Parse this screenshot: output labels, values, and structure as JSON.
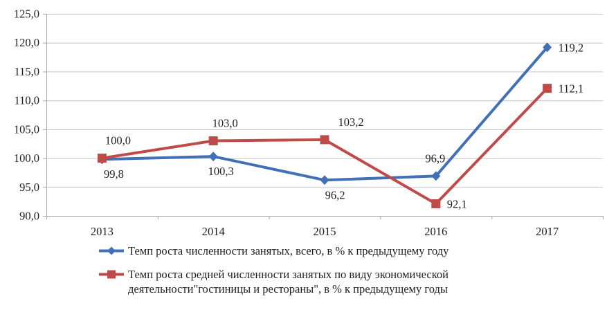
{
  "chart_data": {
    "type": "line",
    "x_categories": [
      "2013",
      "2014",
      "2015",
      "2016",
      "2017"
    ],
    "series": [
      {
        "name": "Темп роста численности занятых, всего, в % к предыдущему году",
        "color": "#4170B8",
        "marker": "diamond",
        "values": [
          99.8,
          100.3,
          96.2,
          96.9,
          119.2
        ],
        "point_labels": [
          "99,8",
          "100,3",
          "96,2",
          "96,9",
          "119,2"
        ],
        "label_placements": [
          {
            "pos": "below",
            "dx": 17
          },
          {
            "pos": "below",
            "dx": 11
          },
          {
            "pos": "below",
            "dx": 15
          },
          {
            "pos": "above",
            "dx": -1
          },
          {
            "pos": "right"
          }
        ]
      },
      {
        "name": "Темп роста средней численности занятых по виду экономической деятельности\"гостиницы и рестораны\", в % к предыдущему годы",
        "color": "#BE4B48",
        "marker": "square",
        "values": [
          100.0,
          103.0,
          103.2,
          92.1,
          112.1
        ],
        "point_labels": [
          "100,0",
          "103,0",
          "103,2",
          "92,1",
          "112,1"
        ],
        "label_placements": [
          {
            "pos": "above",
            "dx": 23
          },
          {
            "pos": "above",
            "dx": 17
          },
          {
            "pos": "above",
            "dx": 38
          },
          {
            "pos": "right"
          },
          {
            "pos": "right"
          }
        ]
      }
    ],
    "ylim": [
      90,
      125
    ],
    "ytick_step": 5,
    "ytick_labels": [
      "125,0",
      "120,0",
      "115,0",
      "110,0",
      "105,0",
      "100,0",
      "95,0",
      "90,0"
    ],
    "grid": true,
    "legend_position": "bottom-left",
    "colors": {
      "gridline": "#C3C3C3",
      "axis": "#A8A8A8",
      "text": "#1F1F1F",
      "background": "#FFFFFF"
    }
  }
}
